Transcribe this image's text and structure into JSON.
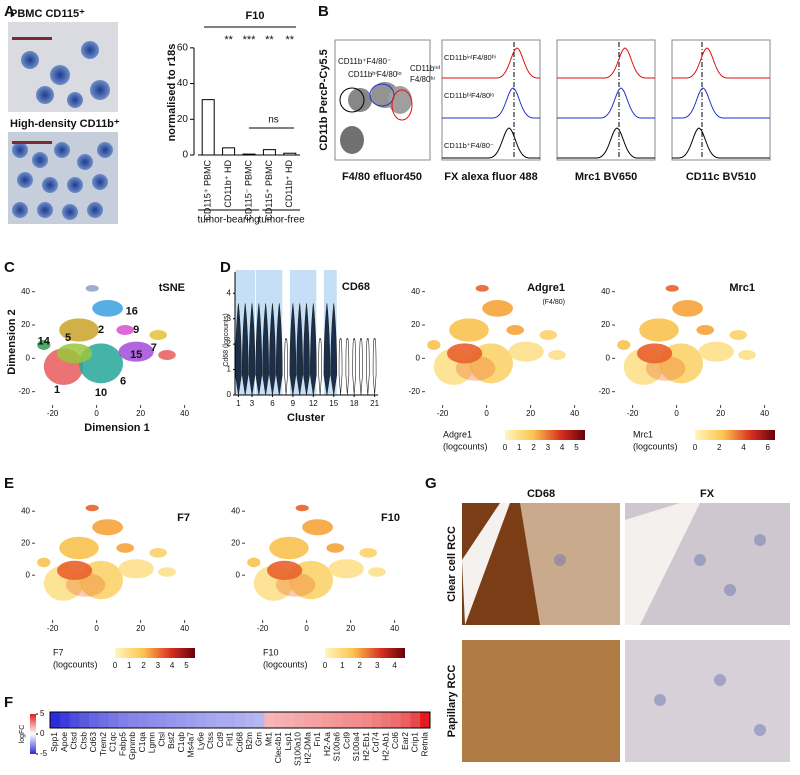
{
  "panels": {
    "a": {
      "letter": "A",
      "image_labels": [
        "PBMC CD115⁺",
        "High-density CD11b⁺"
      ],
      "chart": {
        "type": "bar",
        "title": "F10",
        "ylabel": "normalised to r18s",
        "categories": [
          "CD115⁺ PBMC",
          "CD11b⁺ HD",
          "CD115⁻ PBMC",
          "CD115⁺ PBMC",
          "CD11b⁺ HD"
        ],
        "values": [
          31,
          4,
          0.5,
          3,
          1
        ],
        "color": "#ffffff",
        "ylim": [
          0,
          70
        ],
        "yticks": [
          0,
          20,
          40,
          60
        ],
        "significance": [
          "**",
          "***",
          "**",
          "**"
        ],
        "ns": "ns",
        "groups": [
          "tumor-bearing",
          "tumor-free"
        ]
      }
    },
    "b": {
      "letter": "B",
      "ylabel": "CD11b PercP-Cy5.5",
      "xlabel": "F4/80 efluor450",
      "gates": [
        "CD11b⁺F4/80⁻",
        "CD11bʰⁱF4/80ˡᵒ",
        "CD11bⁱⁿᵗ",
        "F4/80ʰⁱ"
      ],
      "hist_labels": [
        "FX alexa fluor 488",
        "Mrc1 BV650",
        "CD11c BV510"
      ],
      "hist_legend": [
        "CD11bⁱⁿᵗF4/80ʰⁱ",
        "CD11bʰⁱF4/80ˡᵒ",
        "CD11b⁺F4/80⁻"
      ]
    },
    "c": {
      "letter": "C",
      "title": "tSNE",
      "xlabel": "Dimension 1",
      "ylabel": "Dimension 2",
      "clusters": [
        "2",
        "16",
        "9",
        "5",
        "14",
        "7",
        "15",
        "1",
        "10",
        "6"
      ],
      "xticks": [
        -20,
        0,
        20,
        40
      ],
      "yticks": [
        -20,
        0,
        20,
        40
      ]
    },
    "d": {
      "letter": "D",
      "violin": {
        "title": "CD68",
        "ylabel": "Cd68 (logcounts)",
        "xlabel": "Cluster",
        "xticks": [
          1,
          3,
          6,
          9,
          12,
          15,
          18,
          21
        ],
        "yticks": [
          0,
          1,
          2,
          3,
          4
        ]
      },
      "maps": [
        {
          "title": "Adgre1",
          "subtitle": "(F4/80)",
          "scale_label": [
            "Adgre1",
            "(logcounts)"
          ],
          "ticks": [
            0,
            1,
            2,
            3,
            4,
            5
          ]
        },
        {
          "title": "Mrc1",
          "scale_label": [
            "Mrc1",
            "(logcounts)"
          ],
          "ticks": [
            0,
            2,
            4,
            6
          ]
        }
      ]
    },
    "e": {
      "letter": "E",
      "xticks": [
        -20,
        0,
        20,
        40
      ],
      "yticks": [
        0,
        20,
        40
      ],
      "maps": [
        {
          "title": "F7",
          "scale_label": [
            "F7",
            "(logcounts)"
          ],
          "ticks": [
            0,
            1,
            2,
            3,
            4,
            5
          ]
        },
        {
          "title": "F10",
          "scale_label": [
            "F10",
            "(logcounts)"
          ],
          "ticks": [
            0,
            1,
            2,
            3,
            4
          ]
        }
      ]
    },
    "f": {
      "letter": "F",
      "scale_label": "logFC",
      "ticks": [
        5,
        0,
        -5
      ],
      "genes": [
        "Spp1",
        "Apoe",
        "Ctsd",
        "Ctsb",
        "Cd63",
        "Trem2",
        "C1qc",
        "Fabp5",
        "Gpnmb",
        "C1qa",
        "Lgmn",
        "Ctsl",
        "Bst2",
        "C1qb",
        "Ms4a7",
        "Ly6e",
        "Ctss",
        "Cd9",
        "Ftl1",
        "Cd68",
        "B2m",
        "Grn",
        "Mt1",
        "Clec4b1",
        "Lsp1",
        "S100a10",
        "H2-DMa",
        "Fn1",
        "H2-Aa",
        "S100a6",
        "Ccl9",
        "S100a4",
        "H2-Eb1",
        "Cd74",
        "H2-Ab1",
        "Ccl6",
        "Ear2",
        "Crip1",
        "Retnla"
      ],
      "values": [
        -5,
        -4.6,
        -4.2,
        -3.9,
        -3.6,
        -3.4,
        -3.2,
        -3,
        -2.9,
        -2.8,
        -2.7,
        -2.6,
        -2.5,
        -2.4,
        -2.3,
        -2.2,
        -2.1,
        -2,
        -2,
        -1.9,
        -1.8,
        -1.7,
        1.6,
        1.7,
        1.8,
        1.9,
        2,
        2.1,
        2.2,
        2.3,
        2.4,
        2.5,
        2.6,
        2.8,
        3,
        3.2,
        3.5,
        4,
        5
      ]
    },
    "g": {
      "letter": "G",
      "columns": [
        "CD68",
        "FX"
      ],
      "rows": [
        "Clear cell RCC",
        "Papillary RCC"
      ]
    }
  }
}
